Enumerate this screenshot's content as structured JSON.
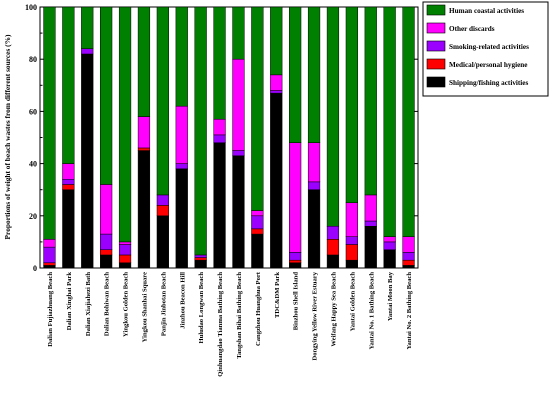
{
  "chart_data": {
    "type": "bar",
    "stacked": true,
    "ylabel": "Proportions of weight of beach wastes from different sources (%)",
    "xlabel": "",
    "ylim": [
      0,
      100
    ],
    "yticks": [
      "0",
      "20",
      "40",
      "60",
      "80",
      "100"
    ],
    "categories": [
      "Dalian Fujiazhuang Beach",
      "Dalian Xinghai Park",
      "Dalian Xiajiahezi Bath",
      "Dalian Bohiwan Beach",
      "Yingkou Golden Beach",
      "Yingkou Shanhai Square",
      "Panjin Jinbotan Beach",
      "Jinzhou Beacon Hill",
      "Huludao Longwan Beach",
      "Qinhuangdao Tianma Bathing Beach",
      "Tangshan Bihai Bathing Beach",
      "Cangzhou Huanghua Port",
      "TDC&DM Park",
      "Binzhou Shell Island",
      "Dongying Yellow River Estuary",
      "Weifang Happy Sea Beach",
      "Yantai Golden Beach",
      "Yantai No. 1 Bathing Beach",
      "Yantai Moon Bay",
      "Yantai No. 2 Bathing Beach"
    ],
    "series": [
      {
        "name": "Shipping/fishing activities",
        "color": "#000000",
        "values": [
          1,
          30,
          82,
          5,
          2,
          45,
          20,
          38,
          3,
          48,
          43,
          13,
          67,
          2,
          30,
          5,
          3,
          16,
          7,
          1
        ]
      },
      {
        "name": "Medical/personal hygiene",
        "color": "#ff0000",
        "values": [
          1,
          2,
          0,
          2,
          3,
          1,
          4,
          0,
          1,
          0,
          0,
          2,
          0,
          1,
          0,
          6,
          6,
          0,
          0,
          2
        ]
      },
      {
        "name": "Smoking-related activities",
        "color": "#9b00ff",
        "values": [
          6,
          2,
          2,
          6,
          4,
          0,
          4,
          2,
          1,
          3,
          2,
          5,
          1,
          3,
          3,
          5,
          3,
          2,
          3,
          3
        ]
      },
      {
        "name": "Other discards",
        "color": "#ff00ff",
        "values": [
          3,
          6,
          0,
          19,
          1,
          12,
          0,
          22,
          0,
          6,
          35,
          2,
          6,
          42,
          15,
          0,
          13,
          10,
          2,
          6
        ]
      },
      {
        "name": "Human coastal activities",
        "color": "#008000",
        "values": [
          89,
          60,
          16,
          68,
          90,
          42,
          72,
          38,
          95,
          43,
          20,
          78,
          26,
          52,
          52,
          84,
          75,
          72,
          88,
          88
        ]
      }
    ],
    "legend_position": "top-right",
    "grid": false
  }
}
